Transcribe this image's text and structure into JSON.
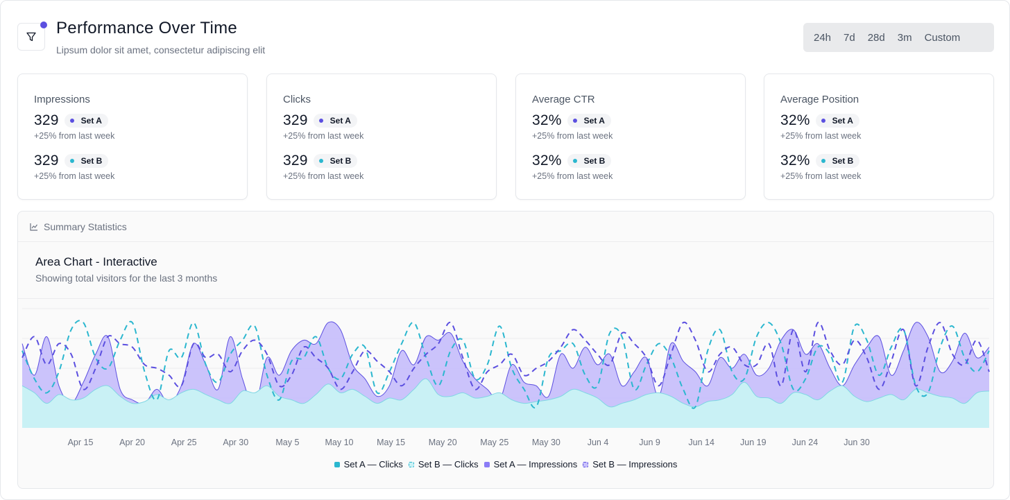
{
  "header": {
    "title": "Performance Over Time",
    "subtitle": "Lipsum dolor sit amet, consectetur adipiscing elit",
    "filter_icon": "filter-icon",
    "ranges": [
      "24h",
      "7d",
      "28d",
      "3m",
      "Custom"
    ]
  },
  "colors": {
    "accent": "#5b4fe0",
    "set_a": "#5b4fe0",
    "set_b": "#2bb7cf",
    "area_clicks": "#c9f1f5",
    "area_impr": "#c8c0fb"
  },
  "cards": [
    {
      "title": "Impressions",
      "a_value": "329",
      "a_label": "Set A",
      "a_delta": "+25% from last week",
      "b_value": "329",
      "b_label": "Set B",
      "b_delta": "+25% from last week"
    },
    {
      "title": "Clicks",
      "a_value": "329",
      "a_label": "Set A",
      "a_delta": "+25% from last week",
      "b_value": "329",
      "b_label": "Set B",
      "b_delta": "+25% from last week"
    },
    {
      "title": "Average CTR",
      "a_value": "32%",
      "a_label": "Set A",
      "a_delta": "+25% from last week",
      "b_value": "32%",
      "b_label": "Set B",
      "b_delta": "+25% from last week"
    },
    {
      "title": "Average Position",
      "a_value": "32%",
      "a_label": "Set A",
      "a_delta": "+25% from last week",
      "b_value": "32%",
      "b_label": "Set B",
      "b_delta": "+25% from last week"
    }
  ],
  "stats": {
    "label": "Summary Statistics",
    "icon": "chart-icon"
  },
  "chart_data": {
    "type": "area",
    "title": "Area Chart - Interactive",
    "subtitle": "Showing total visitors for the last 3 months",
    "xlabel": "",
    "ylabel": "",
    "ylim": [
      0,
      340
    ],
    "grid": true,
    "legend_position": "bottom-center",
    "x_ticks": [
      "Apr 15",
      "Apr 20",
      "Apr 25",
      "Apr 30",
      "May 5",
      "May 10",
      "May 15",
      "May 20",
      "May 25",
      "May 30",
      "Jun 4",
      "Jun 9",
      "Jun 14",
      "Jun 19",
      "Jun 24",
      "Jun 30"
    ],
    "series": [
      {
        "name": "Set A — Clicks",
        "style": "area",
        "values": [
          120,
          100,
          70,
          95,
          80,
          85,
          110,
          120,
          90,
          70,
          75,
          95,
          80,
          100,
          110,
          95,
          80,
          70,
          105,
          100,
          120,
          90,
          80,
          70,
          95,
          125,
          100,
          110,
          90,
          70,
          85,
          80,
          110,
          140,
          95,
          90,
          100,
          85,
          90,
          100,
          80,
          70,
          75,
          80,
          90,
          110,
          100,
          85,
          60,
          70,
          80,
          95,
          100,
          90,
          70,
          60,
          75,
          80,
          95,
          130,
          90,
          85,
          70,
          100,
          95,
          80,
          105,
          120,
          90,
          75,
          85,
          95,
          80,
          110,
          100,
          90,
          85,
          70,
          100,
          105
        ]
      },
      {
        "name": "Set B — Clicks",
        "style": "dashed-line",
        "values": [
          220,
          140,
          100,
          160,
          280,
          300,
          200,
          170,
          250,
          300,
          160,
          80,
          220,
          200,
          300,
          180,
          130,
          210,
          250,
          290,
          150,
          80,
          190,
          200,
          260,
          170,
          140,
          210,
          230,
          100,
          160,
          240,
          300,
          200,
          120,
          220,
          250,
          140,
          180,
          290,
          170,
          110,
          60,
          200,
          220,
          240,
          150,
          120,
          270,
          260,
          110,
          180,
          240,
          200,
          110,
          60,
          220,
          280,
          160,
          140,
          260,
          300,
          240,
          110,
          140,
          230,
          210,
          130,
          290,
          250,
          150,
          230,
          280,
          120,
          100,
          230,
          290,
          200,
          160,
          220
        ]
      },
      {
        "name": "Set A — Impressions",
        "style": "area",
        "values": [
          240,
          150,
          260,
          120,
          70,
          130,
          210,
          260,
          110,
          80,
          70,
          110,
          70,
          120,
          240,
          180,
          110,
          260,
          140,
          60,
          200,
          150,
          220,
          250,
          240,
          300,
          280,
          180,
          140,
          90,
          120,
          220,
          180,
          260,
          250,
          270,
          190,
          140,
          110,
          80,
          180,
          130,
          120,
          90,
          210,
          170,
          230,
          180,
          210,
          120,
          160,
          200,
          90,
          240,
          190,
          160,
          120,
          200,
          170,
          210,
          150,
          170,
          250,
          280,
          210,
          240,
          170,
          120,
          180,
          230,
          260,
          150,
          220,
          300,
          260,
          160,
          190,
          270,
          200,
          230
        ]
      },
      {
        "name": "Set B — Impressions",
        "style": "dashed-line",
        "values": [
          200,
          260,
          180,
          240,
          210,
          110,
          170,
          260,
          240,
          230,
          180,
          170,
          150,
          120,
          240,
          200,
          210,
          160,
          220,
          250,
          210,
          120,
          150,
          230,
          200,
          170,
          110,
          160,
          220,
          190,
          160,
          120,
          170,
          210,
          240,
          300,
          200,
          110,
          160,
          180,
          210,
          150,
          170,
          190,
          230,
          280,
          250,
          210,
          180,
          270,
          240,
          200,
          120,
          210,
          300,
          250,
          160,
          210,
          230,
          180,
          180,
          240,
          120,
          280,
          160,
          300,
          220,
          180,
          250,
          200,
          110,
          190,
          280,
          120,
          230,
          300,
          210,
          180,
          250,
          160
        ]
      }
    ]
  }
}
